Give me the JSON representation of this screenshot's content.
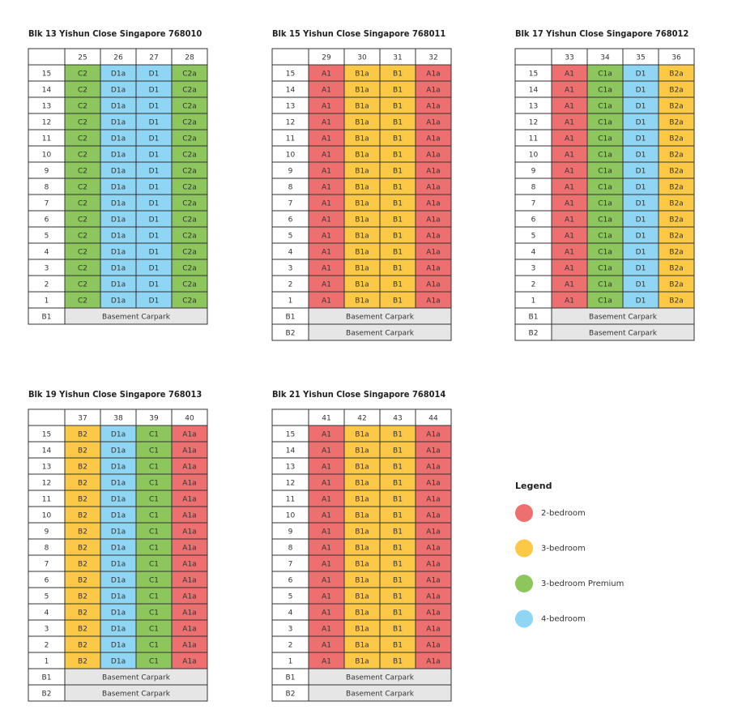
{
  "blocks": [
    {
      "title": "Blk 13 Yishun Close Singapore 768010",
      "columns": [
        {
          "unit": "25",
          "type": "C2",
          "color": "#8dc65d"
        },
        {
          "unit": "26",
          "type": "D1a",
          "color": "#8fd5f4"
        },
        {
          "unit": "27",
          "type": "D1",
          "color": "#8fd5f4"
        },
        {
          "unit": "28",
          "type": "C2a",
          "color": "#8dc65d"
        }
      ],
      "floors": [
        "15",
        "14",
        "13",
        "12",
        "11",
        "10",
        "9",
        "8",
        "7",
        "6",
        "5",
        "4",
        "3",
        "2",
        "1"
      ],
      "basements": [
        {
          "level": "B1",
          "label": "Basement Carpark"
        }
      ]
    },
    {
      "title": "Blk 15 Yishun Close Singapore 768011",
      "columns": [
        {
          "unit": "29",
          "type": "A1",
          "color": "#ee6f6f"
        },
        {
          "unit": "30",
          "type": "B1a",
          "color": "#fcc946"
        },
        {
          "unit": "31",
          "type": "B1",
          "color": "#fcc946"
        },
        {
          "unit": "32",
          "type": "A1a",
          "color": "#ee6f6f"
        }
      ],
      "floors": [
        "15",
        "14",
        "13",
        "12",
        "11",
        "10",
        "9",
        "8",
        "7",
        "6",
        "5",
        "4",
        "3",
        "2",
        "1"
      ],
      "basements": [
        {
          "level": "B1",
          "label": "Basement Carpark"
        },
        {
          "level": "B2",
          "label": "Basement Carpark"
        }
      ]
    },
    {
      "title": "Blk 17 Yishun Close Singapore 768012",
      "columns": [
        {
          "unit": "33",
          "type": "A1",
          "color": "#ee6f6f"
        },
        {
          "unit": "34",
          "type": "C1a",
          "color": "#8dc65d"
        },
        {
          "unit": "35",
          "type": "D1",
          "color": "#8fd5f4"
        },
        {
          "unit": "36",
          "type": "B2a",
          "color": "#fcc946"
        }
      ],
      "floors": [
        "15",
        "14",
        "13",
        "12",
        "11",
        "10",
        "9",
        "8",
        "7",
        "6",
        "5",
        "4",
        "3",
        "2",
        "1"
      ],
      "basements": [
        {
          "level": "B1",
          "label": "Basement Carpark"
        },
        {
          "level": "B2",
          "label": "Basement Carpark"
        }
      ]
    },
    {
      "title": "Blk 19 Yishun Close Singapore 768013",
      "columns": [
        {
          "unit": "37",
          "type": "B2",
          "color": "#fcc946"
        },
        {
          "unit": "38",
          "type": "D1a",
          "color": "#8fd5f4"
        },
        {
          "unit": "39",
          "type": "C1",
          "color": "#8dc65d"
        },
        {
          "unit": "40",
          "type": "A1a",
          "color": "#ee6f6f"
        }
      ],
      "floors": [
        "15",
        "14",
        "13",
        "12",
        "11",
        "10",
        "9",
        "8",
        "7",
        "6",
        "5",
        "4",
        "3",
        "2",
        "1"
      ],
      "basements": [
        {
          "level": "B1",
          "label": "Basement Carpark"
        },
        {
          "level": "B2",
          "label": "Basement Carpark"
        }
      ]
    },
    {
      "title": "Blk 21 Yishun Close Singapore 768014",
      "columns": [
        {
          "unit": "41",
          "type": "A1",
          "color": "#ee6f6f"
        },
        {
          "unit": "42",
          "type": "B1a",
          "color": "#fcc946"
        },
        {
          "unit": "43",
          "type": "B1",
          "color": "#fcc946"
        },
        {
          "unit": "44",
          "type": "A1a",
          "color": "#ee6f6f"
        }
      ],
      "floors": [
        "15",
        "14",
        "13",
        "12",
        "11",
        "10",
        "9",
        "8",
        "7",
        "6",
        "5",
        "4",
        "3",
        "2",
        "1"
      ],
      "basements": [
        {
          "level": "B1",
          "label": "Basement Carpark"
        },
        {
          "level": "B2",
          "label": "Basement Carpark"
        }
      ]
    }
  ],
  "legend": {
    "title": "Legend",
    "items": [
      {
        "label": "2-bedroom",
        "color": "#ee6f6f"
      },
      {
        "label": "3-bedroom",
        "color": "#fcc946"
      },
      {
        "label": "3-bedroom Premium",
        "color": "#8dc65d"
      },
      {
        "label": "4-bedroom",
        "color": "#8fd5f4"
      }
    ]
  }
}
